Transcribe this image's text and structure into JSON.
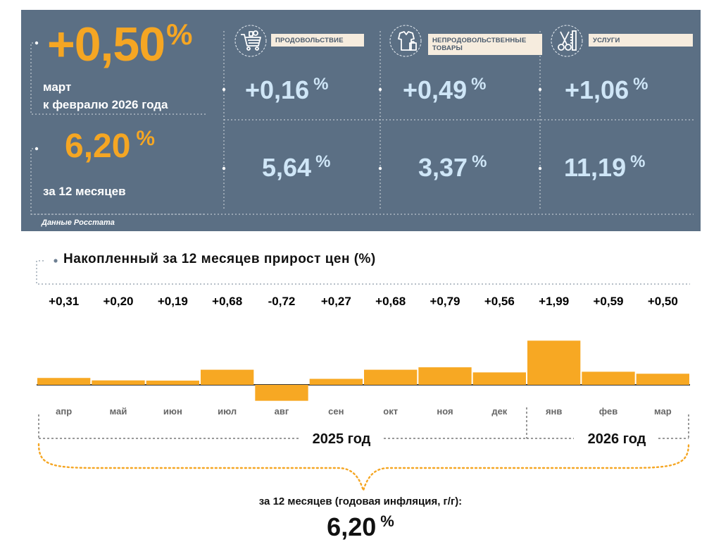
{
  "panel": {
    "headline": {
      "value": "+0,50",
      "unit": "%",
      "line1": "март",
      "line2": "к февралю 2026 года"
    },
    "annual": {
      "value": "6,20",
      "unit": "%",
      "label": "за 12 месяцев"
    },
    "categories": [
      {
        "tag_line1": "ПРОДОВОЛЬСТВИЕ",
        "tag_line2": "",
        "icon": "shopping-cart-icon",
        "monthly": "+0,16",
        "annual": "5,64",
        "unit": "%"
      },
      {
        "tag_line1": "НЕПРОДОВОЛЬСТВЕННЫЕ",
        "tag_line2": "ТОВАРЫ",
        "icon": "shirt-bag-icon",
        "monthly": "+0,49",
        "annual": "3,37",
        "unit": "%"
      },
      {
        "tag_line1": "УСЛУГИ",
        "tag_line2": "",
        "icon": "scissors-comb-icon",
        "monthly": "+1,06",
        "annual": "11,19",
        "unit": "%"
      }
    ],
    "source": "Данные Росстата"
  },
  "chart_data": {
    "type": "bar",
    "title": "Накопленный за 12 месяцев прирост цен (%)",
    "categories": [
      "апр",
      "май",
      "июн",
      "июл",
      "авг",
      "сен",
      "окт",
      "ноя",
      "дек",
      "янв",
      "фев",
      "мар"
    ],
    "values": [
      0.31,
      0.2,
      0.19,
      0.68,
      -0.72,
      0.27,
      0.68,
      0.79,
      0.56,
      1.99,
      0.59,
      0.5
    ],
    "value_labels": [
      "+0,31",
      "+0,20",
      "+0,19",
      "+0,68",
      "-0,72",
      "+0,27",
      "+0,68",
      "+0,79",
      "+0,56",
      "+1,99",
      "+0,59",
      "+0,50"
    ],
    "year_groups": [
      {
        "label": "2025 год",
        "months": 9
      },
      {
        "label": "2026 год",
        "months": 3
      }
    ],
    "bar_color": "#f7a823",
    "xlabel": "",
    "ylabel": ""
  },
  "footer": {
    "label": "за 12 месяцев (годовая инфляция, г/г):",
    "value": "6,20",
    "unit": "%"
  },
  "colors": {
    "panel_bg": "#5b6f84",
    "accent": "#f5a623",
    "value_blue": "#cfe6f7",
    "tag_bg": "#f6ecde"
  }
}
